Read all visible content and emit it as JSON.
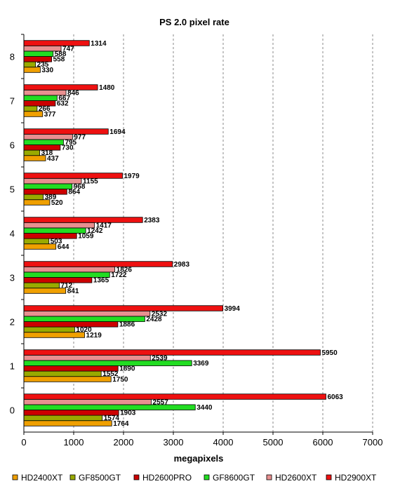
{
  "chart_data": {
    "type": "bar",
    "orientation": "horizontal",
    "title": "PS 2.0 pixel rate",
    "xlabel": "megapixels",
    "ylabel": "",
    "xlim": [
      0,
      7000
    ],
    "x_ticks": [
      "0",
      "1000",
      "2000",
      "3000",
      "4000",
      "5000",
      "6000",
      "7000"
    ],
    "categories": [
      "0",
      "1",
      "2",
      "3",
      "4",
      "5",
      "6",
      "7",
      "8"
    ],
    "grid": "vertical dashed",
    "legend_position": "bottom",
    "series": [
      {
        "name": "HD2400XT",
        "color": "#f0a000",
        "values": [
          1764,
          1750,
          1219,
          841,
          644,
          520,
          437,
          377,
          330
        ]
      },
      {
        "name": "GF8500GT",
        "color": "#99aa00",
        "values": [
          1574,
          1552,
          1020,
          712,
          503,
          389,
          318,
          266,
          235
        ]
      },
      {
        "name": "HD2600PRO",
        "color": "#cc0000",
        "values": [
          1903,
          1890,
          1886,
          1365,
          1059,
          864,
          730,
          632,
          558
        ]
      },
      {
        "name": "GF8600GT",
        "color": "#22dd22",
        "values": [
          3440,
          3369,
          2428,
          1722,
          1242,
          968,
          795,
          667,
          588
        ]
      },
      {
        "name": "HD2600XT",
        "color": "#e89090",
        "values": [
          2557,
          2539,
          2532,
          1826,
          1417,
          1155,
          977,
          846,
          747
        ]
      },
      {
        "name": "HD2900XT",
        "color": "#ee1111",
        "values": [
          6063,
          5950,
          3994,
          2983,
          2383,
          1979,
          1694,
          1480,
          1314
        ]
      }
    ]
  }
}
